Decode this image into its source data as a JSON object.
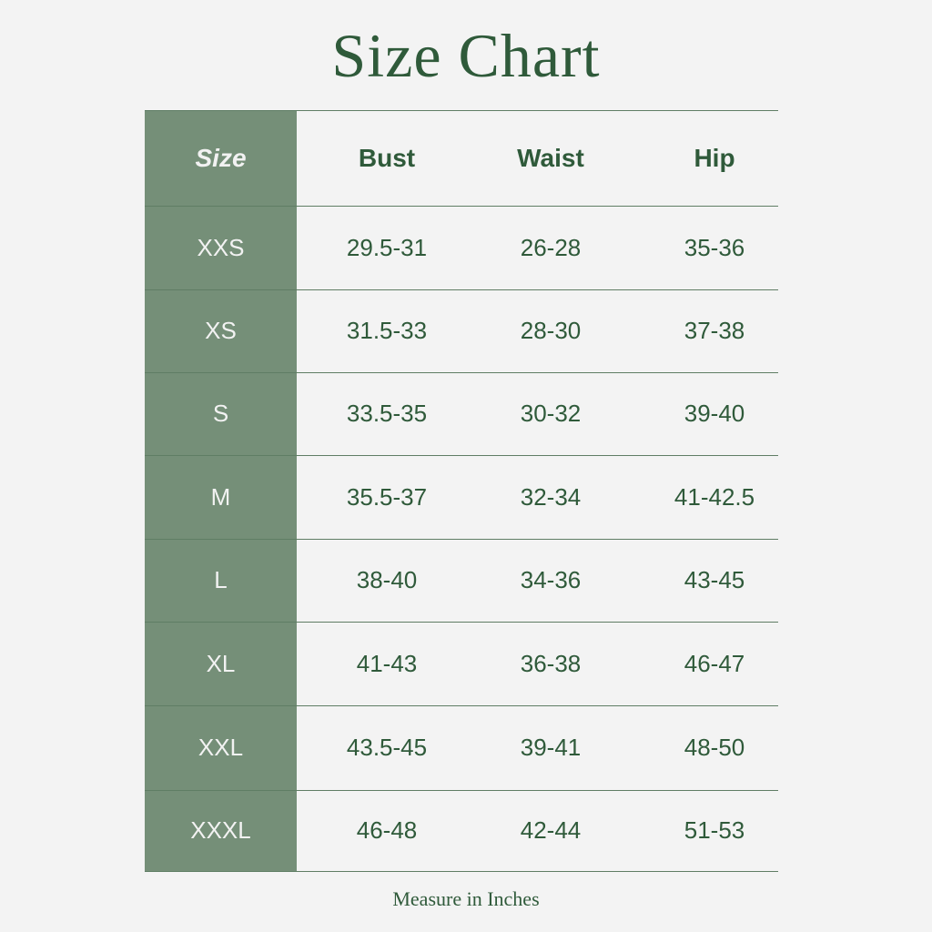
{
  "title": "Size Chart",
  "colors": {
    "accent_green": "#758f78",
    "text_green": "#2f5a3a",
    "background": "#f3f3f3"
  },
  "table": {
    "headers": [
      "Size",
      "Bust",
      "Waist",
      "Hip"
    ],
    "rows": [
      [
        "XXS",
        "29.5-31",
        "26-28",
        "35-36"
      ],
      [
        "XS",
        "31.5-33",
        "28-30",
        "37-38"
      ],
      [
        "S",
        "33.5-35",
        "30-32",
        "39-40"
      ],
      [
        "M",
        "35.5-37",
        "32-34",
        "41-42.5"
      ],
      [
        "L",
        "38-40",
        "34-36",
        "43-45"
      ],
      [
        "XL",
        "41-43",
        "36-38",
        "46-47"
      ],
      [
        "XXL",
        "43.5-45",
        "39-41",
        "48-50"
      ],
      [
        "XXXL",
        "46-48",
        "42-44",
        "51-53"
      ]
    ]
  },
  "footer": "Measure in Inches"
}
